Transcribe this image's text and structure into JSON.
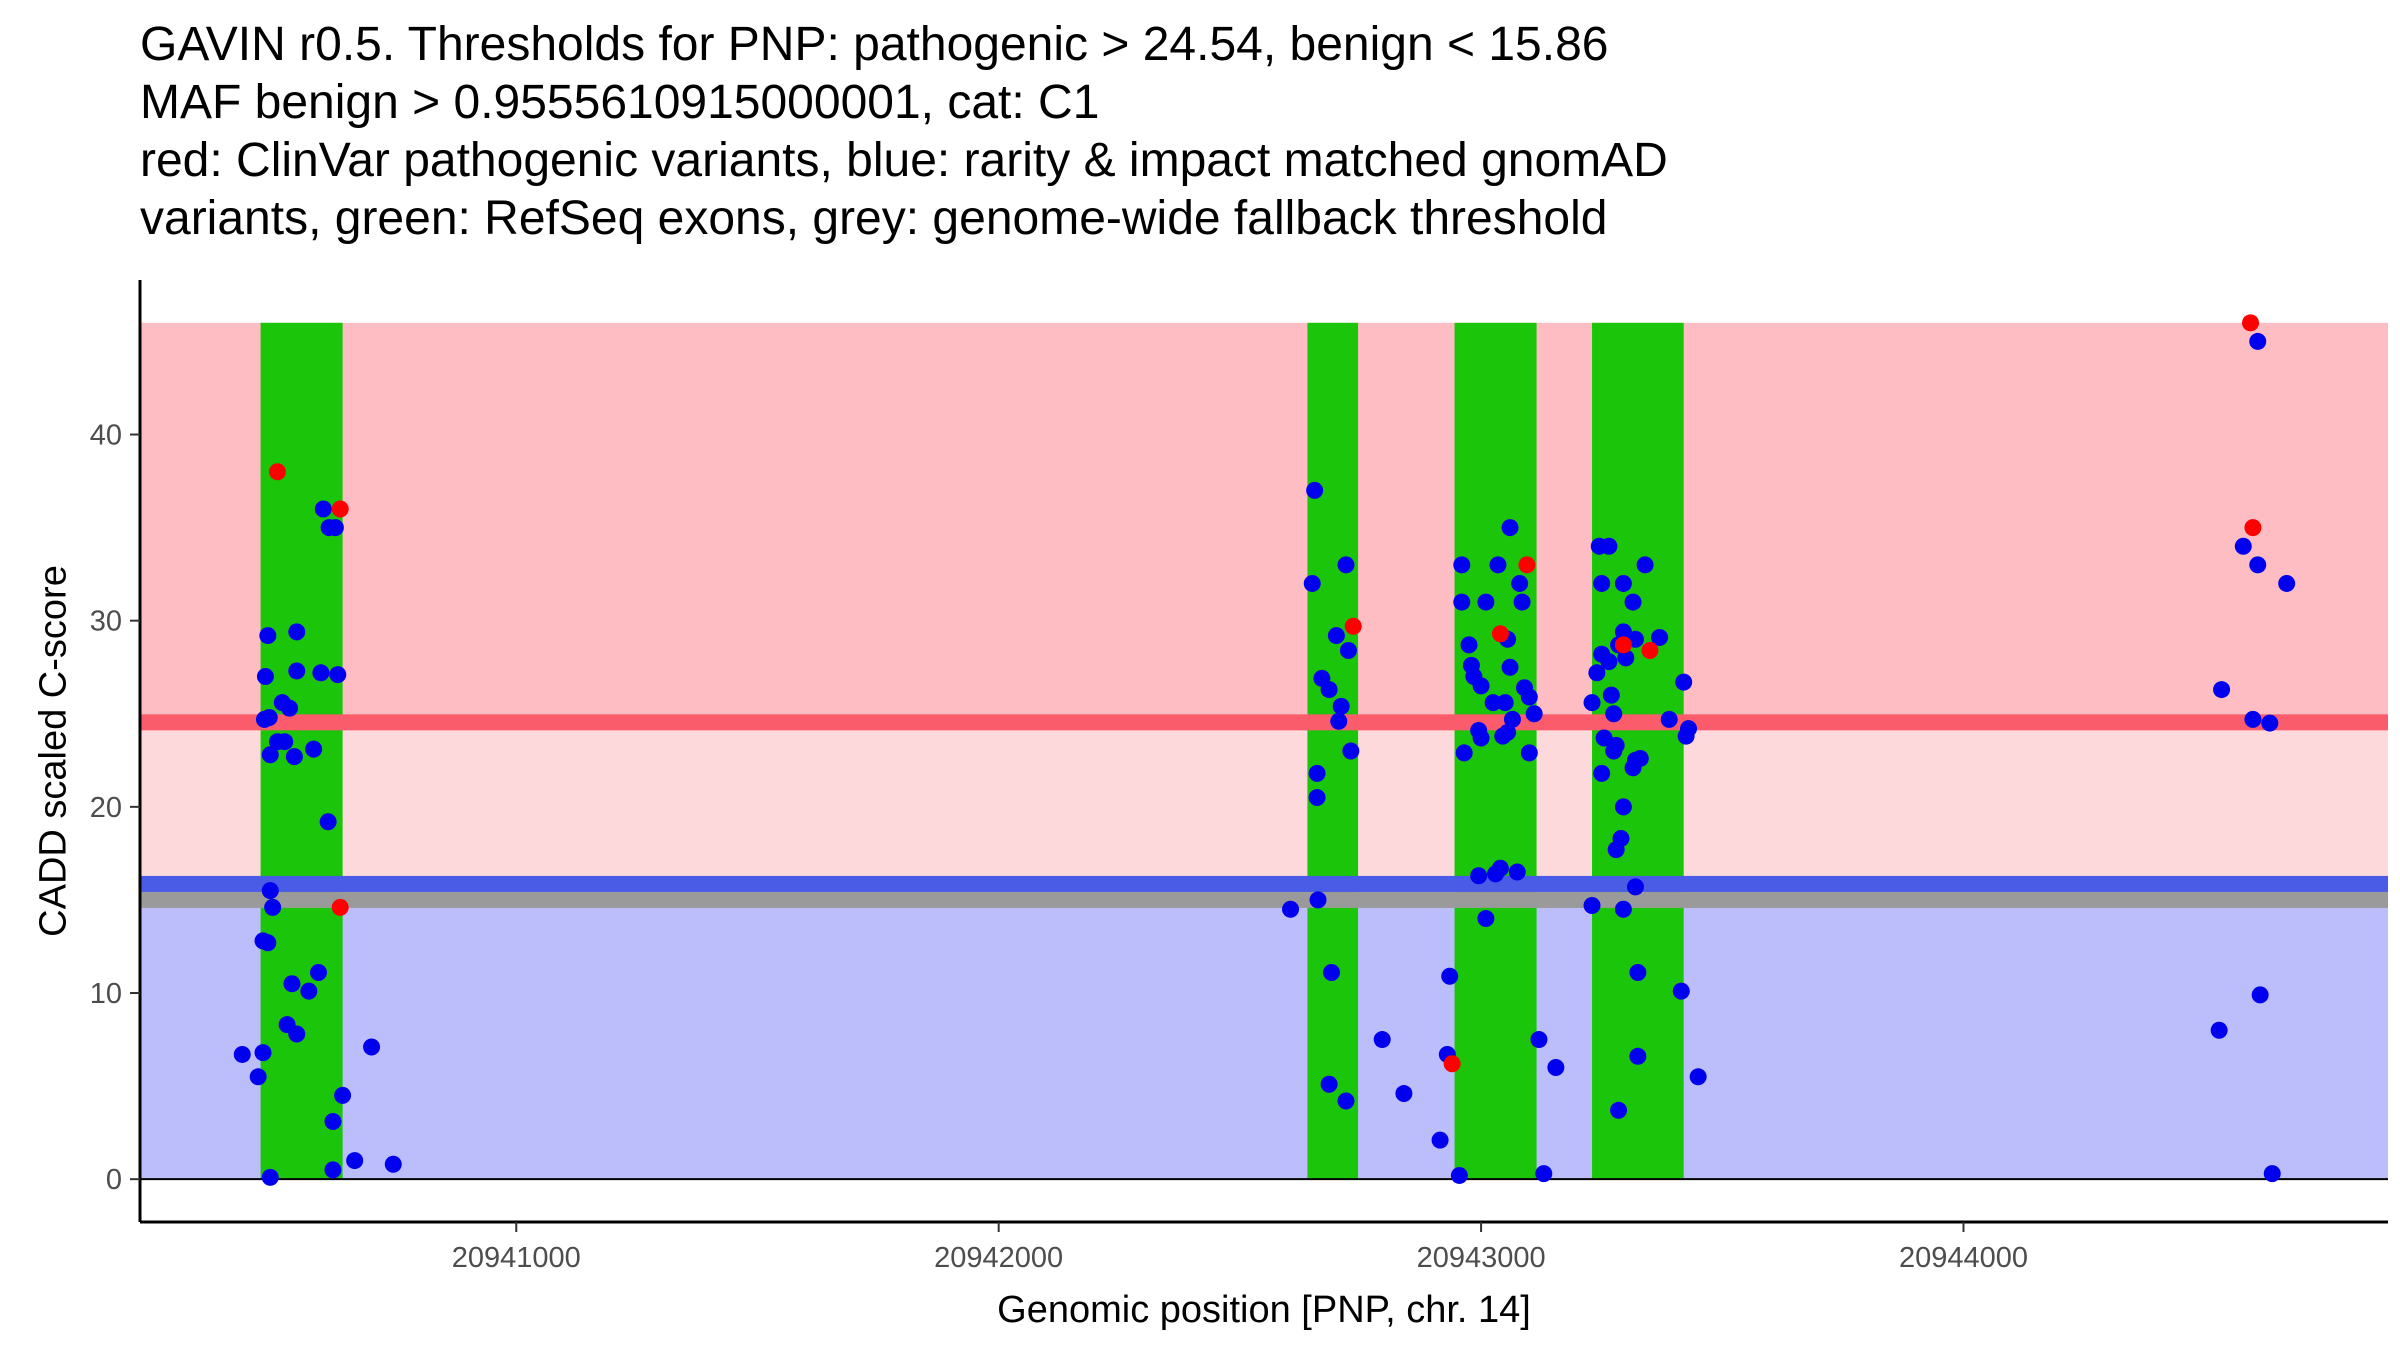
{
  "chart_data": {
    "type": "scatter",
    "title": [
      "GAVIN r0.5. Thresholds for PNP: pathogenic > 24.54, benign < 15.86",
      "MAF benign > 0.9555610915000001, cat: C1",
      "red: ClinVar pathogenic variants, blue: rarity & impact matched gnomAD",
      "variants, green: RefSeq exons, grey: genome-wide fallback threshold"
    ],
    "xlabel": "Genomic position [PNP, chr. 14]",
    "ylabel": "CADD scaled C-score",
    "xlim": [
      20940220,
      20944880
    ],
    "ylim": [
      -2.3,
      48.3
    ],
    "x_ticks": [
      20941000,
      20942000,
      20943000,
      20944000
    ],
    "x_tick_labels": [
      "20941000",
      "20942000",
      "20943000",
      "20944000"
    ],
    "y_ticks": [
      0,
      10,
      20,
      30,
      40
    ],
    "y_tick_labels": [
      "0",
      "10",
      "20",
      "30",
      "40"
    ],
    "colors": {
      "pathogenic_region": "#fdbdc2",
      "between_region": "#fdd9dc",
      "benign_region": "#bbbefa",
      "pathogenic_line": "#fa5c6c",
      "benign_line": "#4a5ce6",
      "fallback_line": "#9a9a9a",
      "exon": "#1ac50a",
      "clinvar_point": "#ff0000",
      "gnomad_point": "#0000ee"
    },
    "regions": {
      "pathogenic": [
        24.54,
        46
      ],
      "intermediate": [
        15.86,
        24.54
      ],
      "benign": [
        0,
        15.86
      ]
    },
    "thresholds": {
      "pathogenic": 24.54,
      "benign": 15.86,
      "fallback": 15.0
    },
    "exons": [
      {
        "start": 20940470,
        "end": 20940640
      },
      {
        "start": 20942640,
        "end": 20942745
      },
      {
        "start": 20942945,
        "end": 20943115
      },
      {
        "start": 20943230,
        "end": 20943420
      }
    ],
    "series": [
      {
        "name": "gnomAD",
        "color": "#0000ee",
        "points": [
          [
            20940432,
            6.7
          ],
          [
            20940465,
            5.5
          ],
          [
            20940475,
            6.8
          ],
          [
            20940475,
            12.8
          ],
          [
            20940485,
            12.7
          ],
          [
            20940478,
            24.7
          ],
          [
            20940480,
            27
          ],
          [
            20940485,
            29.2
          ],
          [
            20940490,
            22.8
          ],
          [
            20940488,
            24.8
          ],
          [
            20940490,
            15.5
          ],
          [
            20940495,
            14.6
          ],
          [
            20940490,
            0.1
          ],
          [
            20940505,
            23.5
          ],
          [
            20940515,
            25.6
          ],
          [
            20940520,
            23.5
          ],
          [
            20940525,
            8.3
          ],
          [
            20940530,
            25.3
          ],
          [
            20940535,
            10.5
          ],
          [
            20940540,
            22.7
          ],
          [
            20940545,
            27.3
          ],
          [
            20940545,
            7.8
          ],
          [
            20940545,
            29.4
          ],
          [
            20940570,
            10.1
          ],
          [
            20940580,
            23.1
          ],
          [
            20940590,
            11.1
          ],
          [
            20940595,
            27.2
          ],
          [
            20940600,
            36
          ],
          [
            20940610,
            19.2
          ],
          [
            20940612,
            35
          ],
          [
            20940625,
            35
          ],
          [
            20940620,
            3.1
          ],
          [
            20940620,
            0.5
          ],
          [
            20940630,
            27.1
          ],
          [
            20940640,
            4.5
          ],
          [
            20940665,
            1
          ],
          [
            20940700,
            7.1
          ],
          [
            20940745,
            0.8
          ],
          [
            20942605,
            14.5
          ],
          [
            20942650,
            32
          ],
          [
            20942655,
            37
          ],
          [
            20942660,
            21.8
          ],
          [
            20942660,
            20.5
          ],
          [
            20942662,
            15
          ],
          [
            20942670,
            26.9
          ],
          [
            20942685,
            26.3
          ],
          [
            20942690,
            11.1
          ],
          [
            20942700,
            29.2
          ],
          [
            20942705,
            24.6
          ],
          [
            20942710,
            25.4
          ],
          [
            20942720,
            33
          ],
          [
            20942725,
            28.4
          ],
          [
            20942730,
            23
          ],
          [
            20942685,
            5.1
          ],
          [
            20942720,
            4.2
          ],
          [
            20942795,
            7.5
          ],
          [
            20942840,
            4.6
          ],
          [
            20942915,
            2.1
          ],
          [
            20942930,
            6.7
          ],
          [
            20942935,
            10.9
          ],
          [
            20942955,
            0.2
          ],
          [
            20942960,
            33
          ],
          [
            20942960,
            31
          ],
          [
            20942965,
            22.9
          ],
          [
            20942975,
            28.7
          ],
          [
            20942980,
            27.6
          ],
          [
            20942985,
            27
          ],
          [
            20942995,
            24.1
          ],
          [
            20942995,
            16.3
          ],
          [
            20943000,
            26.5
          ],
          [
            20943000,
            23.7
          ],
          [
            20943010,
            31
          ],
          [
            20943010,
            14
          ],
          [
            20943025,
            25.6
          ],
          [
            20943030,
            16.4
          ],
          [
            20943035,
            33
          ],
          [
            20943040,
            16.7
          ],
          [
            20943045,
            23.8
          ],
          [
            20943050,
            25.6
          ],
          [
            20943055,
            29
          ],
          [
            20943055,
            24
          ],
          [
            20943060,
            35
          ],
          [
            20943060,
            27.5
          ],
          [
            20943065,
            24.7
          ],
          [
            20943075,
            16.5
          ],
          [
            20943080,
            32
          ],
          [
            20943085,
            31
          ],
          [
            20943090,
            26.4
          ],
          [
            20943100,
            25.9
          ],
          [
            20943100,
            22.9
          ],
          [
            20943110,
            25
          ],
          [
            20943120,
            7.5
          ],
          [
            20943130,
            0.3
          ],
          [
            20943155,
            6
          ],
          [
            20943230,
            14.7
          ],
          [
            20943230,
            25.6
          ],
          [
            20943240,
            27.2
          ],
          [
            20943245,
            34
          ],
          [
            20943250,
            32
          ],
          [
            20943250,
            28.2
          ],
          [
            20943250,
            21.8
          ],
          [
            20943255,
            23.7
          ],
          [
            20943265,
            34
          ],
          [
            20943265,
            27.8
          ],
          [
            20943270,
            26
          ],
          [
            20943275,
            23
          ],
          [
            20943275,
            25
          ],
          [
            20943280,
            17.7
          ],
          [
            20943280,
            23.3
          ],
          [
            20943285,
            28.7
          ],
          [
            20943285,
            3.7
          ],
          [
            20943290,
            18.3
          ],
          [
            20943295,
            32
          ],
          [
            20943295,
            20
          ],
          [
            20943295,
            14.5
          ],
          [
            20943295,
            29.4
          ],
          [
            20943300,
            28
          ],
          [
            20943315,
            31
          ],
          [
            20943315,
            22.1
          ],
          [
            20943320,
            22.5
          ],
          [
            20943320,
            29
          ],
          [
            20943320,
            15.7
          ],
          [
            20943325,
            11.1
          ],
          [
            20943325,
            6.6
          ],
          [
            20943330,
            22.6
          ],
          [
            20943340,
            33
          ],
          [
            20943370,
            29.1
          ],
          [
            20943390,
            24.7
          ],
          [
            20943415,
            10.1
          ],
          [
            20943420,
            26.7
          ],
          [
            20943425,
            23.8
          ],
          [
            20943430,
            24.2
          ],
          [
            20943450,
            5.5
          ],
          [
            20944530,
            8
          ],
          [
            20944535,
            26.3
          ],
          [
            20944580,
            34
          ],
          [
            20944600,
            24.7
          ],
          [
            20944610,
            45
          ],
          [
            20944610,
            33
          ],
          [
            20944615,
            9.9
          ],
          [
            20944635,
            24.5
          ],
          [
            20944640,
            0.3
          ],
          [
            20944670,
            32
          ]
        ]
      },
      {
        "name": "ClinVar",
        "color": "#ff0000",
        "points": [
          [
            20940505,
            38
          ],
          [
            20940635,
            36
          ],
          [
            20940635,
            14.6
          ],
          [
            20942735,
            29.7
          ],
          [
            20942940,
            6.2
          ],
          [
            20943040,
            29.3
          ],
          [
            20943095,
            33
          ],
          [
            20943295,
            28.7
          ],
          [
            20943350,
            28.4
          ],
          [
            20944595,
            46
          ],
          [
            20944600,
            35
          ]
        ]
      }
    ]
  }
}
